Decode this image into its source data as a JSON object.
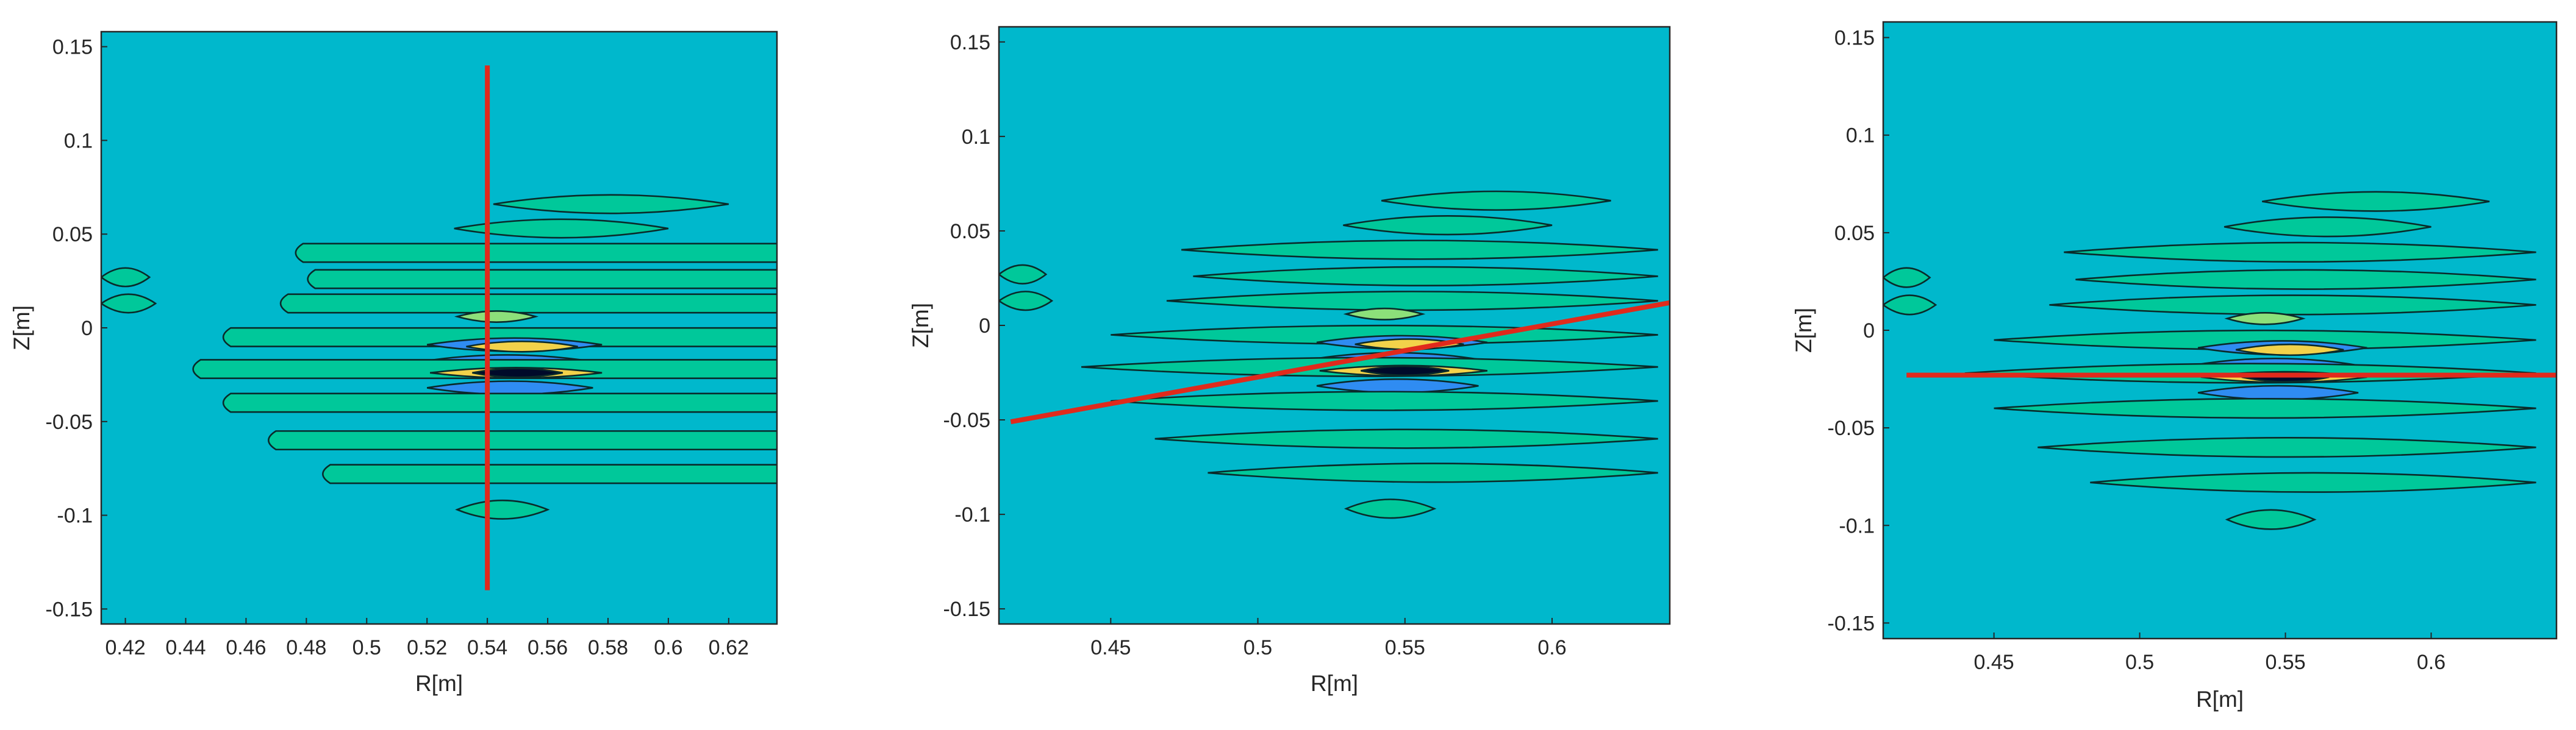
{
  "colors": {
    "background": "#00b8cc",
    "level_low": "#00c89a",
    "level_mid": "#2f8cf2",
    "level_high": "#8ce07a",
    "level_peak": "#f2d24a",
    "level_core": "#000a2a",
    "contour_line": "#0a2a2a",
    "cut_line": "#e02a1c",
    "frame": "#262626"
  },
  "chart_data": [
    {
      "type": "heatmap",
      "xlabel": "R[m]",
      "ylabel": "Z[m]",
      "xlim": [
        0.412,
        0.636
      ],
      "ylim": [
        -0.158,
        0.158
      ],
      "xticks": [
        0.42,
        0.44,
        0.46,
        0.48,
        0.5,
        0.52,
        0.54,
        0.56,
        0.58,
        0.6,
        0.62
      ],
      "xtick_labels": [
        "0.42",
        "0.44",
        "0.46",
        "0.48",
        "0.5",
        "0.52",
        "0.54",
        "0.56",
        "0.58",
        "0.6",
        "0.62"
      ],
      "yticks": [
        0.15,
        0.1,
        0.05,
        0,
        -0.05,
        -0.1,
        -0.15
      ],
      "ytick_labels": [
        "0.15",
        "0.1",
        "0.05",
        "0",
        "-0.05",
        "-0.1",
        "-0.15"
      ],
      "cut_line": {
        "x": [
          0.54,
          0.54
        ],
        "y": [
          0.14,
          -0.14
        ]
      }
    },
    {
      "type": "heatmap",
      "xlabel": "R[m]",
      "ylabel": "Z[m]",
      "xlim": [
        0.412,
        0.64
      ],
      "ylim": [
        -0.158,
        0.158
      ],
      "xticks": [
        0.45,
        0.5,
        0.55,
        0.6
      ],
      "xtick_labels": [
        "0.45",
        "0.5",
        "0.55",
        "0.6"
      ],
      "yticks": [
        0.15,
        0.1,
        0.05,
        0,
        -0.05,
        -0.1,
        -0.15
      ],
      "ytick_labels": [
        "0.15",
        "0.1",
        "0.05",
        "0",
        "-0.05",
        "-0.1",
        "-0.15"
      ],
      "cut_line": {
        "x": [
          0.416,
          0.64
        ],
        "y": [
          -0.051,
          0.012
        ]
      }
    },
    {
      "type": "heatmap",
      "xlabel": "R[m]",
      "ylabel": "Z[m]",
      "xlim": [
        0.412,
        0.643
      ],
      "ylim": [
        -0.158,
        0.158
      ],
      "xticks": [
        0.45,
        0.5,
        0.55,
        0.6
      ],
      "xtick_labels": [
        "0.45",
        "0.5",
        "0.55",
        "0.6"
      ],
      "yticks": [
        0.15,
        0.1,
        0.05,
        0,
        -0.05,
        -0.1,
        -0.15
      ],
      "ytick_labels": [
        "0.15",
        "0.1",
        "0.05",
        "0",
        "-0.05",
        "-0.1",
        "-0.15"
      ],
      "cut_line": {
        "x": [
          0.42,
          0.643
        ],
        "y": [
          -0.023,
          -0.023
        ]
      }
    }
  ],
  "field_contours": [
    {
      "r0": 0.542,
      "r1": 0.62,
      "z": 0.066,
      "level": "low"
    },
    {
      "r0": 0.529,
      "r1": 0.6,
      "z": 0.053,
      "level": "low"
    },
    {
      "r0": 0.474,
      "r1": 0.636,
      "z": 0.04,
      "level": "low"
    },
    {
      "r0": 0.478,
      "r1": 0.636,
      "z": 0.026,
      "level": "low"
    },
    {
      "r0": 0.469,
      "r1": 0.636,
      "z": 0.013,
      "level": "low"
    },
    {
      "r0": 0.53,
      "r1": 0.556,
      "z": 0.006,
      "level": "high"
    },
    {
      "r0": 0.45,
      "r1": 0.636,
      "z": -0.005,
      "level": "low"
    },
    {
      "r0": 0.52,
      "r1": 0.578,
      "z": -0.009,
      "level": "mid"
    },
    {
      "r0": 0.533,
      "r1": 0.57,
      "z": -0.01,
      "level": "peak"
    },
    {
      "r0": 0.518,
      "r1": 0.575,
      "z": -0.018,
      "level": "mid"
    },
    {
      "r0": 0.44,
      "r1": 0.636,
      "z": -0.022,
      "level": "low"
    },
    {
      "r0": 0.521,
      "r1": 0.578,
      "z": -0.024,
      "level": "peak"
    },
    {
      "r0": 0.535,
      "r1": 0.565,
      "z": -0.024,
      "level": "core"
    },
    {
      "r0": 0.52,
      "r1": 0.575,
      "z": -0.032,
      "level": "mid"
    },
    {
      "r0": 0.528,
      "r1": 0.56,
      "z": -0.041,
      "level": "high"
    },
    {
      "r0": 0.45,
      "r1": 0.636,
      "z": -0.04,
      "level": "low"
    },
    {
      "r0": 0.465,
      "r1": 0.636,
      "z": -0.06,
      "level": "low"
    },
    {
      "r0": 0.483,
      "r1": 0.636,
      "z": -0.078,
      "level": "low"
    },
    {
      "r0": 0.53,
      "r1": 0.56,
      "z": -0.097,
      "level": "low"
    },
    {
      "r0": 0.412,
      "r1": 0.428,
      "z": 0.027,
      "level": "low"
    },
    {
      "r0": 0.412,
      "r1": 0.43,
      "z": 0.013,
      "level": "low"
    }
  ]
}
